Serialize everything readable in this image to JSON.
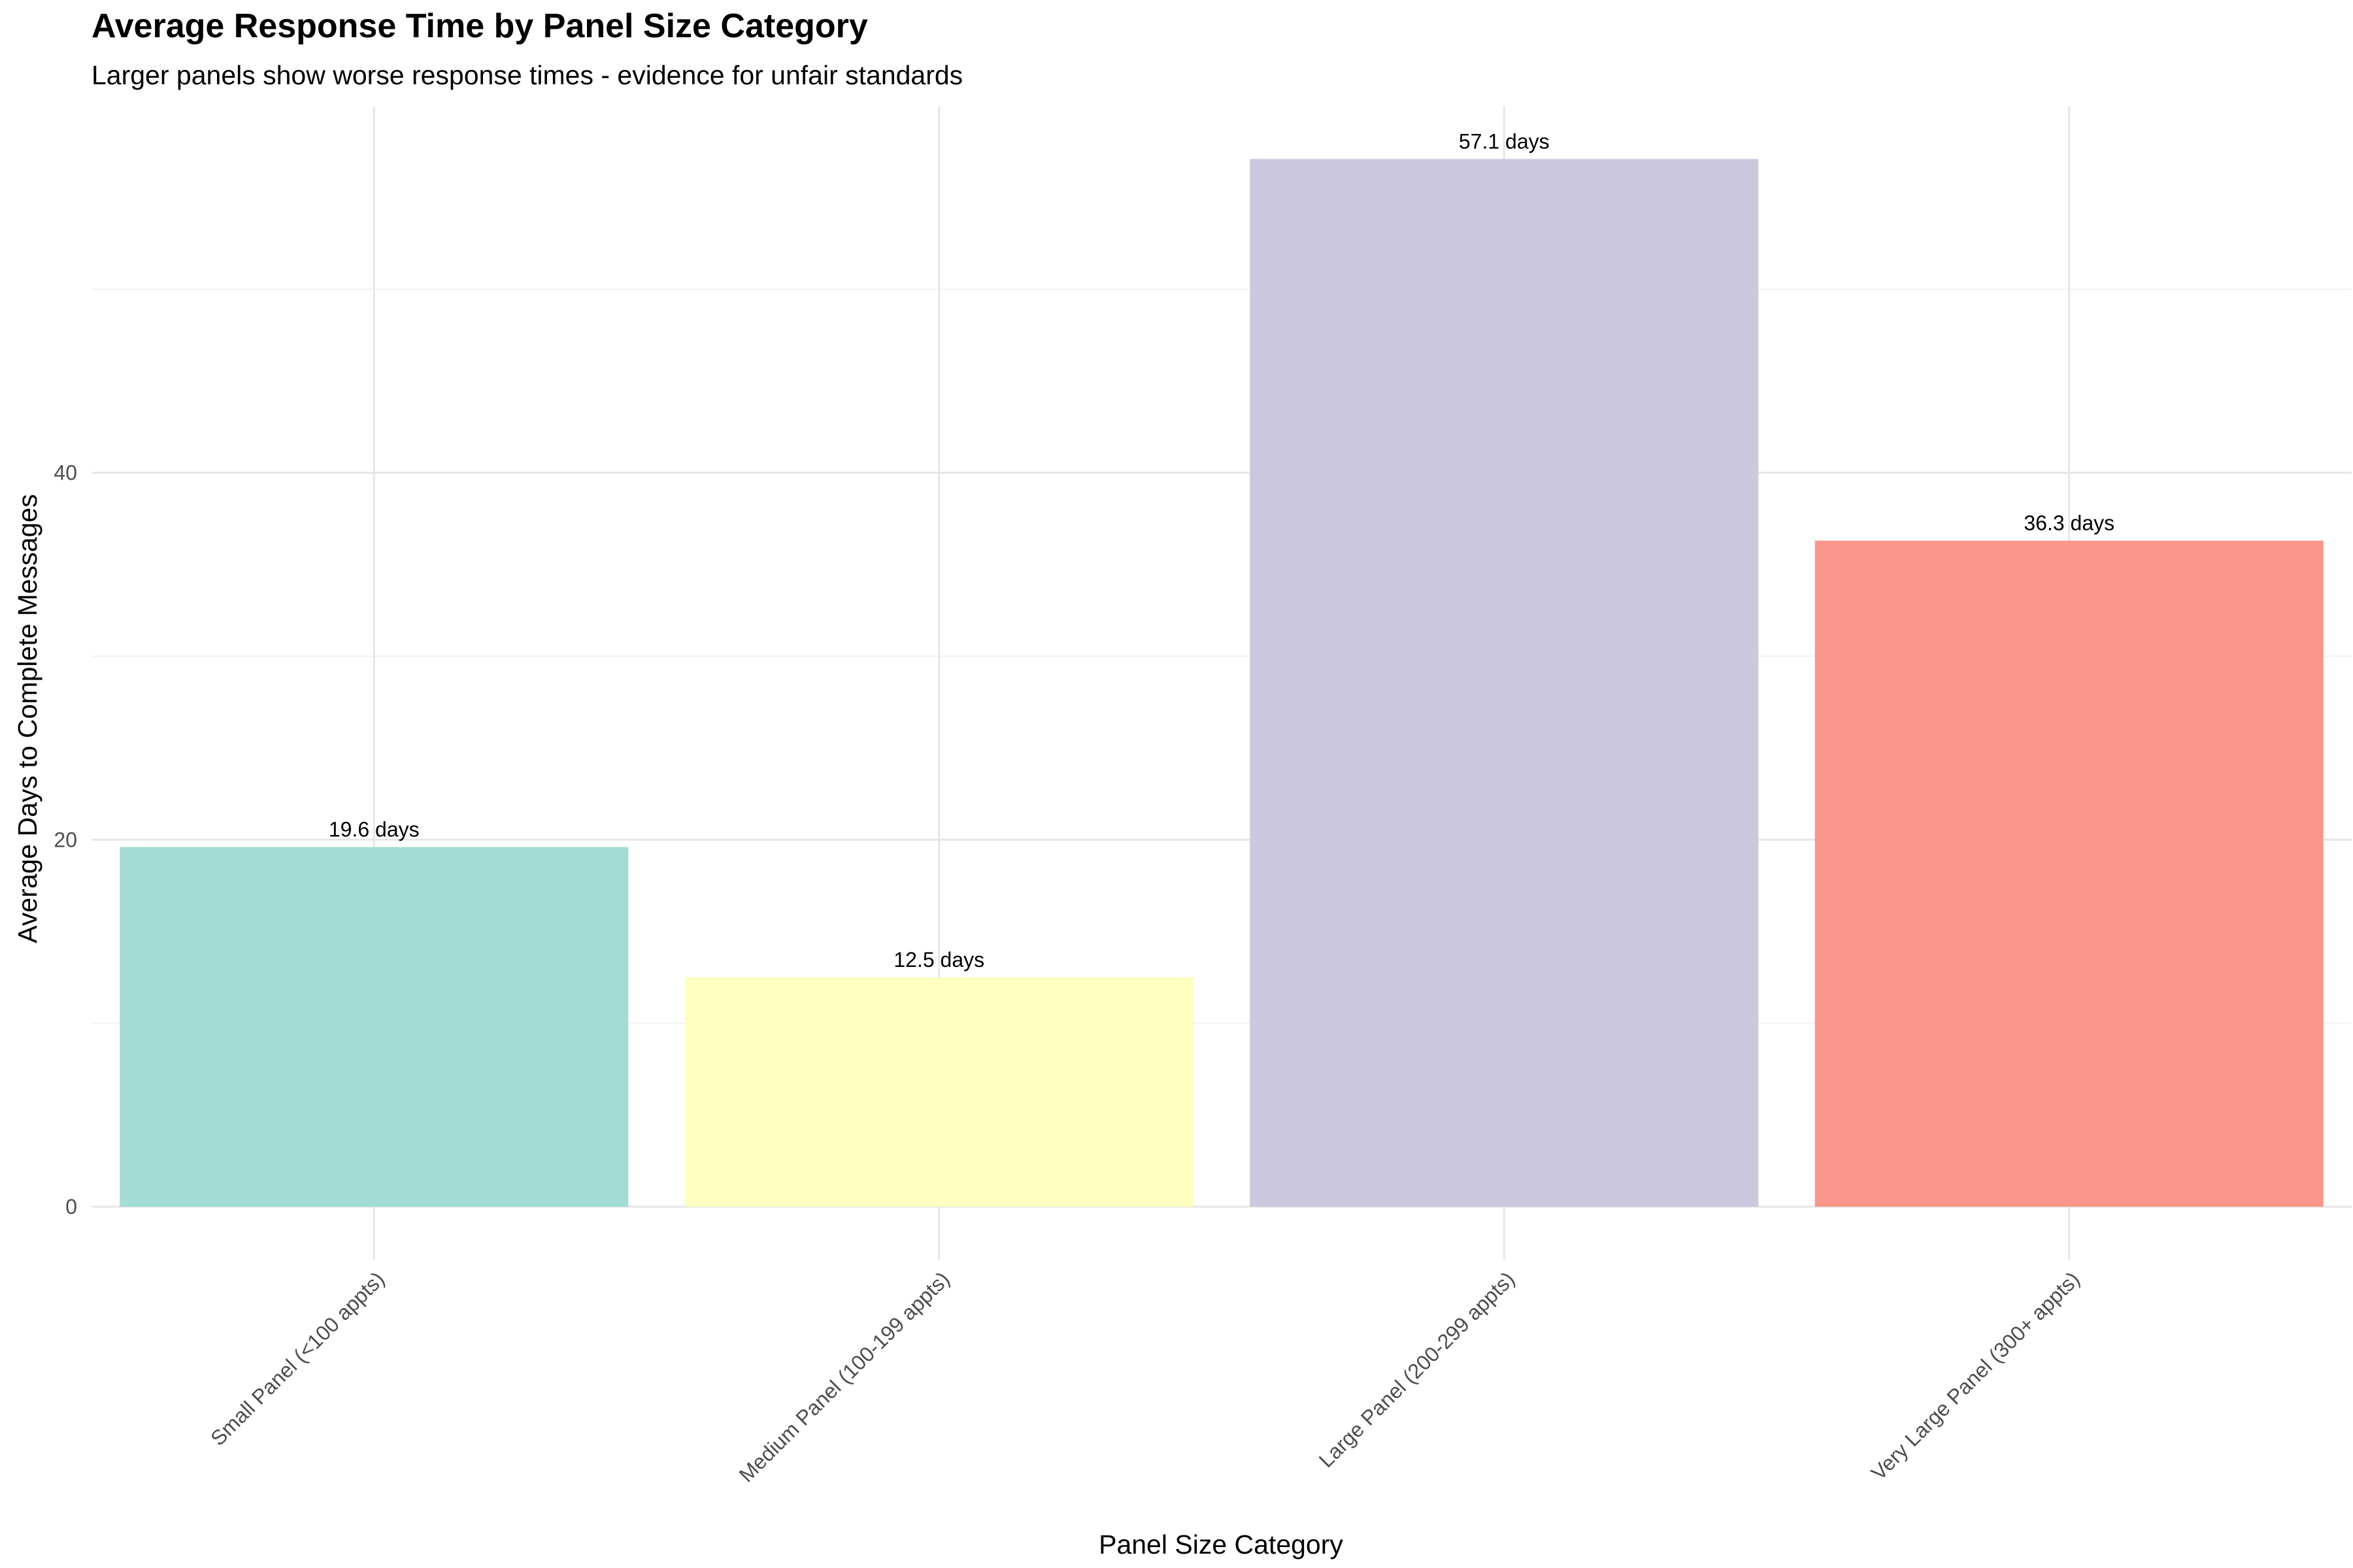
{
  "chart_data": {
    "type": "bar",
    "title": "Average Response Time by Panel Size Category",
    "subtitle": "Larger panels show worse response times - evidence for unfair standards",
    "xlabel": "Panel Size Category",
    "ylabel": "Average Days to Complete Messages",
    "categories": [
      "Small Panel (<100 appts)",
      "Medium Panel (100-199 appts)",
      "Large Panel (200-299 appts)",
      "Very Large Panel (300+ appts)"
    ],
    "values": [
      19.6,
      12.5,
      57.1,
      36.3
    ],
    "data_labels": [
      "19.6 days",
      "12.5 days",
      "57.1 days",
      "36.3 days"
    ],
    "colors": [
      "#a3dcd4",
      "#ffffbf",
      "#cbc8e0",
      "#f9968b"
    ],
    "ylim": [
      0,
      59.96
    ],
    "yticks": [
      0,
      20,
      40
    ],
    "grid": true,
    "legend": "none"
  }
}
